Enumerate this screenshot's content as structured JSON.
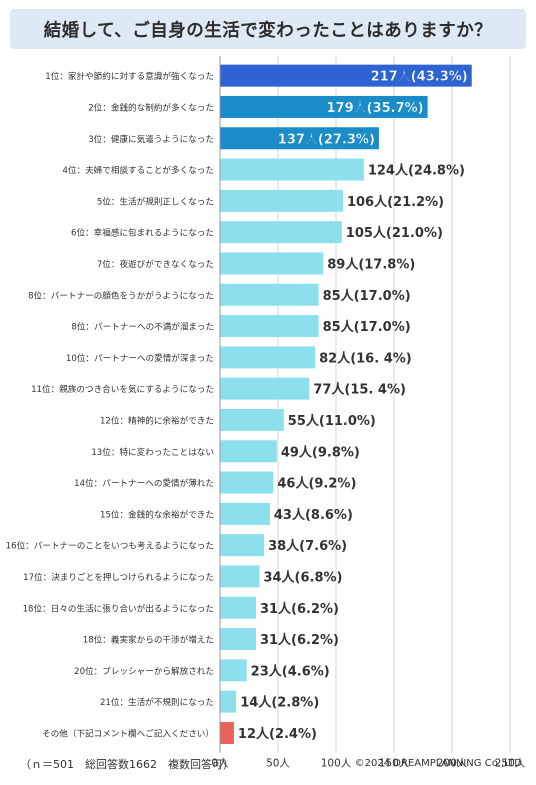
{
  "title": "結婚して、ご自身の生活で変わったことはありますか？",
  "footer": {
    "note": "（ｎ＝501　総回答数1662　複数回答可）",
    "credit": "©2024 DREAMPLANNING Co.,LTD"
  },
  "colors": {
    "top1": "#2e63d4",
    "top23": "#1a8cc7",
    "normal": "#8ce0ee",
    "other": "#e8635a",
    "grid": "#d6d6d6"
  },
  "chart_data": {
    "type": "bar",
    "orientation": "horizontal",
    "title": "結婚して、ご自身の生活で変わったことはありますか？",
    "xlim": [
      0,
      250
    ],
    "ticks": [
      "0人",
      "50人",
      "100人",
      "150人",
      "200人",
      "250人"
    ],
    "categories": [
      "1位：家計や節約に対する意識が強くなった",
      "2位：金銭的な制約が多くなった",
      "3位：健康に気遣うようになった",
      "4位：夫婦で相談することが多くなった",
      "5位：生活が規則正しくなった",
      "6位：幸福感に包まれるようになった",
      "7位：夜遊びができなくなった",
      "8位：パートナーの顔色をうかがうようになった",
      "8位：パートナーへの不満が溜まった",
      "10位：パートナーへの愛情が深まった",
      "11位：親族のつき合いを気にするようになった",
      "12位：精神的に余裕ができた",
      "13位：特に変わったことはない",
      "14位：パートナーへの愛情が薄れた",
      "15位：金銭的な余裕ができた",
      "16位：パートナーのことをいつも考えるようになった",
      "17位：決まりごとを押しつけられるようになった",
      "18位：日々の生活に張り合いが出るようになった",
      "18位：義実家からの干渉が増えた",
      "20位：プレッシャーから解放された",
      "21位：生活が不規則になった",
      "その他（下記コメント欄へご記入ください）"
    ],
    "values": [
      217,
      179,
      137,
      124,
      106,
      105,
      89,
      85,
      85,
      82,
      77,
      55,
      49,
      46,
      43,
      38,
      34,
      31,
      31,
      23,
      14,
      12
    ],
    "labels": [
      "217人(43.3%)",
      "179人(35.7%)",
      "137人(27.3%)",
      "124人(24.8%)",
      "106人(21.2%)",
      "105人(21.0%)",
      "89人(17.8%)",
      "85人(17.0%)",
      "85人(17.0%)",
      "82人(16. 4%)",
      "77人(15. 4%)",
      "55人(11.0%)",
      "49人(9.8%)",
      "46人(9.2%)",
      "43人(8.6%)",
      "38人(7.6%)",
      "34人(6.8%)",
      "31人(6.2%)",
      "31人(6.2%)",
      "23人(4.6%)",
      "14人(2.8%)",
      "12人(2.4%)"
    ],
    "grid": true
  }
}
